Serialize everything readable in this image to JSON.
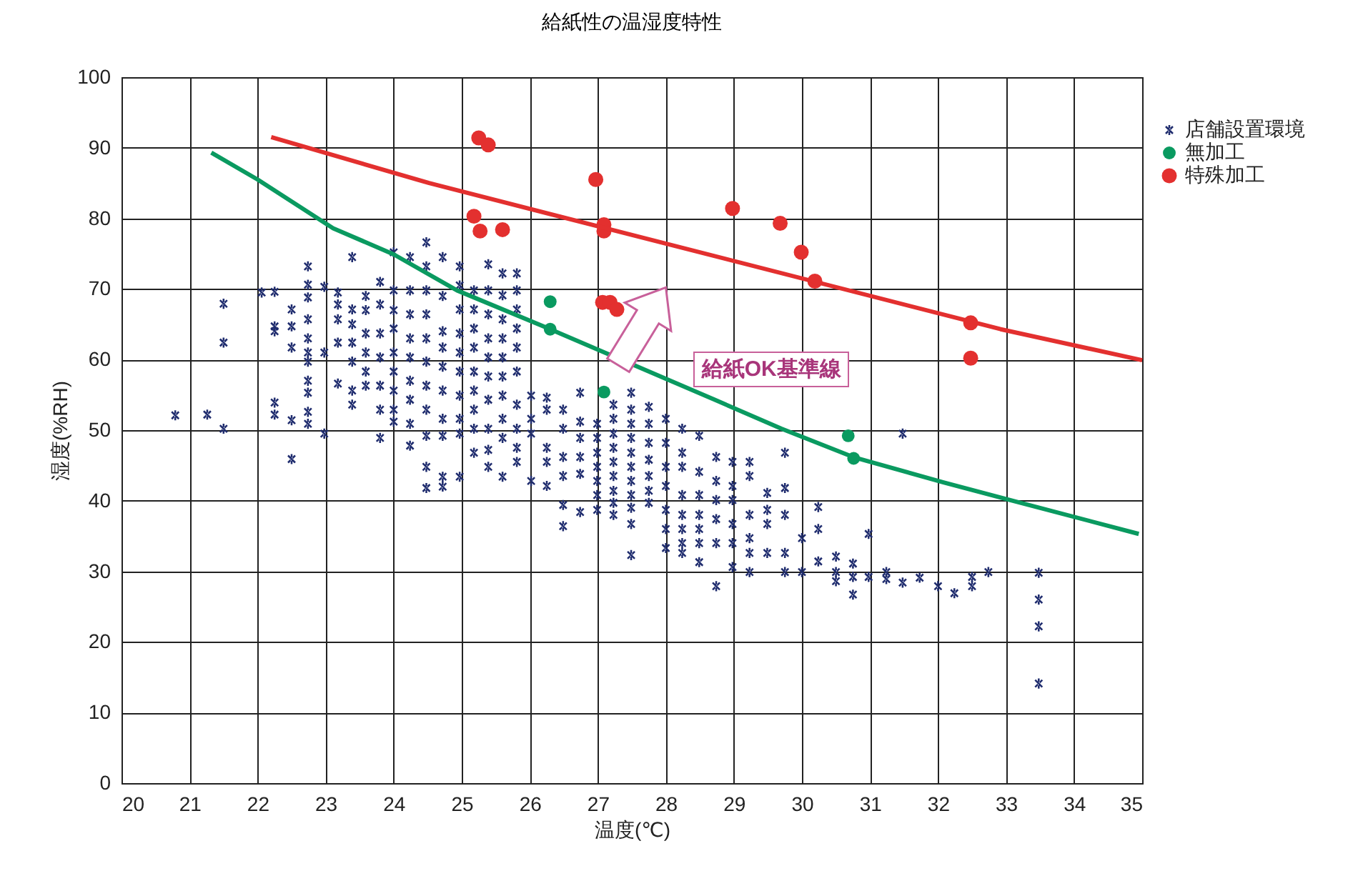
{
  "chart_data": {
    "type": "scatter",
    "title": "給紙性の温湿度特性",
    "xlabel": "温度(℃)",
    "ylabel": "湿度(%RH)",
    "xlim": [
      20,
      35
    ],
    "xticks": [
      20,
      21,
      22,
      23,
      24,
      25,
      26,
      27,
      28,
      29,
      30,
      31,
      32,
      33,
      34,
      35
    ],
    "ylim": [
      0,
      100
    ],
    "yticks": [
      0,
      10,
      20,
      30,
      40,
      50,
      60,
      70,
      80,
      90,
      100
    ],
    "grid": true,
    "legend": "right",
    "annotations": [
      "給紙OK基準線"
    ],
    "series": [
      {
        "name": "店舗設置環境",
        "marker": "cross",
        "color": "#1f2c6e",
        "x": [
          20.79,
          21.26,
          21.5,
          21.5,
          21.5,
          22.06,
          22.25,
          22.25,
          22.25,
          22.25,
          22.25,
          22.5,
          22.5,
          22.5,
          22.5,
          22.5,
          22.74,
          22.74,
          22.74,
          22.74,
          22.74,
          22.74,
          22.74,
          22.74,
          22.74,
          22.74,
          22.74,
          22.98,
          22.98,
          22.98,
          23.18,
          23.18,
          23.18,
          23.18,
          23.18,
          23.39,
          23.39,
          23.39,
          23.39,
          23.39,
          23.39,
          23.39,
          23.59,
          23.59,
          23.59,
          23.59,
          23.59,
          23.59,
          23.8,
          23.8,
          23.8,
          23.8,
          23.8,
          23.8,
          23.8,
          24.0,
          24.0,
          24.0,
          24.0,
          24.0,
          24.0,
          24.0,
          24.0,
          24.0,
          24.24,
          24.24,
          24.24,
          24.24,
          24.24,
          24.24,
          24.24,
          24.24,
          24.24,
          24.48,
          24.48,
          24.48,
          24.48,
          24.48,
          24.48,
          24.48,
          24.48,
          24.48,
          24.48,
          24.48,
          24.72,
          24.72,
          24.72,
          24.72,
          24.72,
          24.72,
          24.72,
          24.72,
          24.72,
          24.72,
          24.97,
          24.97,
          24.97,
          24.97,
          24.97,
          24.97,
          24.97,
          24.97,
          24.97,
          24.97,
          25.18,
          25.18,
          25.18,
          25.18,
          25.18,
          25.18,
          25.18,
          25.18,
          25.18,
          25.39,
          25.39,
          25.39,
          25.39,
          25.39,
          25.39,
          25.39,
          25.39,
          25.39,
          25.39,
          25.6,
          25.6,
          25.6,
          25.6,
          25.6,
          25.6,
          25.6,
          25.6,
          25.6,
          25.6,
          25.81,
          25.81,
          25.81,
          25.81,
          25.81,
          25.81,
          25.81,
          25.81,
          25.81,
          25.81,
          26.02,
          26.02,
          26.02,
          26.02,
          26.25,
          26.25,
          26.25,
          26.25,
          26.25,
          26.49,
          26.49,
          26.49,
          26.49,
          26.49,
          26.49,
          26.74,
          26.74,
          26.74,
          26.74,
          26.74,
          26.74,
          26.99,
          26.99,
          26.99,
          26.99,
          26.99,
          26.99,
          26.99,
          27.23,
          27.23,
          27.23,
          27.23,
          27.23,
          27.23,
          27.23,
          27.23,
          27.23,
          27.49,
          27.49,
          27.49,
          27.49,
          27.49,
          27.49,
          27.49,
          27.49,
          27.49,
          27.49,
          27.49,
          27.75,
          27.75,
          27.75,
          27.75,
          27.75,
          27.75,
          27.75,
          28.0,
          28.0,
          28.0,
          28.0,
          28.0,
          28.0,
          28.0,
          28.24,
          28.24,
          28.24,
          28.24,
          28.24,
          28.24,
          28.24,
          28.24,
          28.49,
          28.49,
          28.49,
          28.49,
          28.49,
          28.49,
          28.49,
          28.74,
          28.74,
          28.74,
          28.74,
          28.74,
          28.74,
          28.98,
          28.98,
          28.98,
          28.98,
          28.98,
          28.98,
          29.23,
          29.23,
          29.23,
          29.23,
          29.23,
          29.23,
          29.49,
          29.49,
          29.49,
          29.49,
          29.75,
          29.75,
          29.75,
          29.75,
          29.75,
          30.0,
          30.0,
          30.24,
          30.24,
          30.24,
          30.5,
          30.5,
          30.5,
          30.75,
          30.75,
          30.75,
          30.98,
          30.98,
          31.24,
          31.24,
          31.48,
          31.48,
          31.73,
          32.0,
          32.24,
          32.5,
          32.5,
          32.74,
          33.48,
          33.48,
          33.48,
          33.48
        ],
        "values": [
          52.1,
          52.2,
          50.2,
          62.4,
          67.9,
          69.5,
          69.6,
          64.7,
          64,
          53.9,
          52.2,
          67.1,
          64.7,
          61.7,
          51.4,
          45.9,
          73.2,
          70.6,
          68.8,
          65.7,
          63,
          61,
          59.7,
          57,
          55.3,
          52.6,
          50.9,
          70.3,
          61,
          49.5,
          69.5,
          67.8,
          65.7,
          62.4,
          56.6,
          74.5,
          67.1,
          65,
          62.4,
          59.7,
          55.6,
          53.6,
          69,
          67,
          63.7,
          61,
          58.3,
          56.3,
          71,
          67.8,
          63.7,
          60.3,
          56.3,
          52.9,
          48.9,
          75.2,
          69.8,
          67,
          64.4,
          61,
          58.3,
          55.6,
          52.9,
          51.2,
          74.5,
          69.8,
          66.4,
          63,
          60.3,
          57,
          54.3,
          50.9,
          47.8,
          76.6,
          73.2,
          69.8,
          66.4,
          63,
          59.7,
          56.3,
          52.9,
          49.2,
          44.8,
          41.8,
          74.5,
          69,
          64,
          61.7,
          59,
          55.6,
          51.6,
          49.2,
          43.4,
          42,
          73.2,
          70.5,
          67.1,
          63.7,
          61,
          58.3,
          54.9,
          51.6,
          49.5,
          43.4,
          69.8,
          67.1,
          64.4,
          61.7,
          58.3,
          55.6,
          52.9,
          50.2,
          46.8,
          73.5,
          69.8,
          66.4,
          63,
          60.3,
          57.6,
          54.3,
          50.2,
          47.2,
          44.8,
          72.2,
          69.1,
          65.7,
          63,
          60.3,
          57.6,
          54.9,
          51.6,
          48.9,
          43.4,
          72.2,
          69.8,
          67.1,
          64.4,
          61.7,
          58.3,
          53.6,
          50.2,
          47.5,
          45.5,
          54.9,
          51.6,
          49.5,
          42.8,
          54.6,
          52.9,
          47.5,
          45.5,
          42.1,
          52.9,
          50.2,
          46.2,
          43.5,
          39.4,
          36.4,
          55.3,
          51.2,
          48.9,
          46.2,
          43.8,
          38.4,
          50.9,
          48.9,
          46.8,
          44.8,
          42.8,
          40.8,
          38.7,
          53.6,
          51.6,
          49.5,
          47.5,
          45.5,
          43.5,
          41.4,
          39.7,
          38,
          55.3,
          52.9,
          50.9,
          48.9,
          46.8,
          44.8,
          42.8,
          40.8,
          39,
          36.7,
          32.3,
          53.3,
          50.9,
          48.2,
          45.8,
          43.5,
          41.4,
          39.7,
          51.6,
          48.2,
          44.8,
          42.1,
          38.7,
          36,
          33.3,
          50.2,
          46.8,
          44.8,
          40.8,
          38,
          36,
          34,
          32.6,
          49.2,
          44.1,
          40.8,
          38,
          36,
          34,
          31.3,
          46.2,
          42.8,
          40.1,
          37.4,
          34,
          27.9,
          45.5,
          42.1,
          40.1,
          36.7,
          34,
          30.6,
          45.5,
          43.5,
          38,
          34.7,
          32.6,
          29.9,
          41.1,
          38.7,
          36.7,
          32.6,
          46.8,
          41.8,
          38,
          32.6,
          29.9,
          34.7,
          29.9,
          39.1,
          36,
          31.4,
          32.1,
          29.9,
          28.6,
          31.1,
          29.2,
          26.7,
          35.3,
          29.2,
          29.9,
          28.9,
          49.5,
          28.4,
          29.1,
          27.9,
          26.9,
          29.2,
          27.9,
          29.9,
          29.8,
          26,
          22.2,
          14.1
        ]
      },
      {
        "name": "無加工",
        "marker": "circle",
        "color": "#0a9a60",
        "x": [
          26.3,
          26.3,
          27.09,
          30.68,
          30.76
        ],
        "values": [
          68.2,
          64.3,
          55.4,
          49.2,
          46
        ]
      },
      {
        "name": "特殊加工",
        "marker": "circle",
        "color": "#e3302f",
        "x": [
          25.25,
          25.39,
          26.97,
          25.18,
          25.27,
          25.6,
          27.09,
          27.09,
          27.07,
          27.18,
          27.28,
          28.98,
          29.68,
          29.99,
          30.19,
          32.48,
          32.48
        ],
        "values": [
          91.4,
          90.4,
          85.5,
          80.3,
          78.2,
          78.4,
          79.1,
          78.2,
          68.1,
          68.1,
          67.1,
          81.4,
          79.3,
          75.2,
          71.1,
          65.2,
          60.2
        ]
      },
      {
        "type": "line",
        "color": "#0a9a60",
        "x": [
          21.32,
          22,
          23.11,
          24,
          24.93,
          26.3,
          28.72,
          29.7,
          30.75,
          32.08,
          33.06,
          34.95
        ],
        "values": [
          89.3,
          85.5,
          78.6,
          74.9,
          69.8,
          64.3,
          54.3,
          50.2,
          46.2,
          42.6,
          40.1,
          35.3
        ]
      },
      {
        "type": "line",
        "color": "#e3302f",
        "x": [
          22.2,
          24.52,
          32.92,
          35
        ],
        "values": [
          91.5,
          85,
          64.3,
          59.9
        ]
      }
    ]
  }
}
